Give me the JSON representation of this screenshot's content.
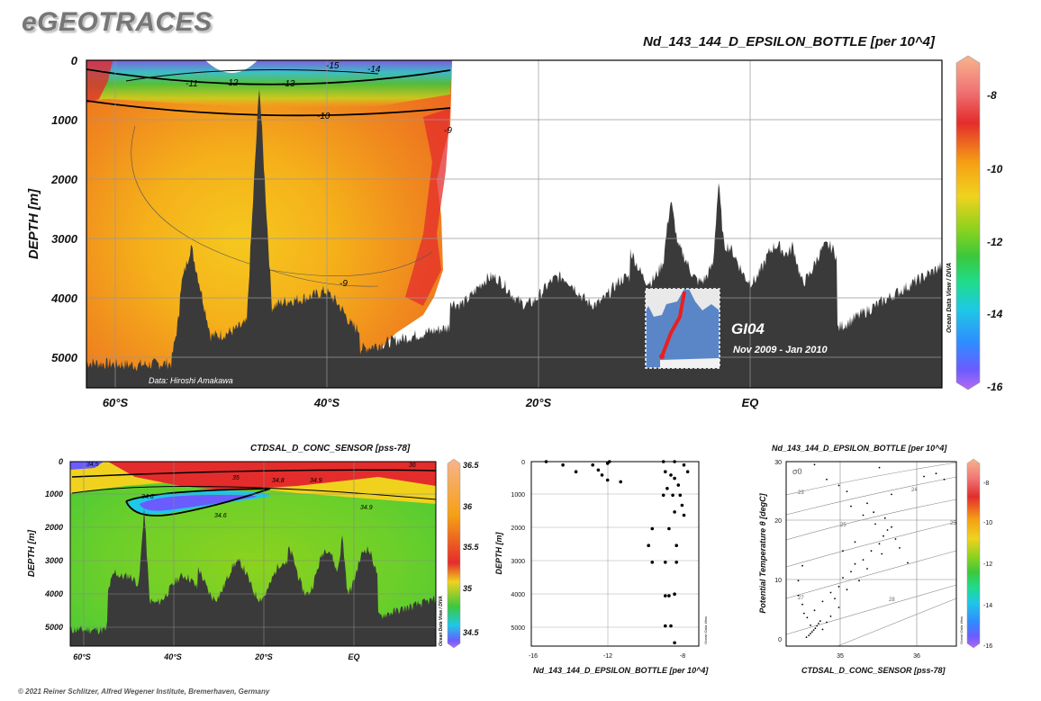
{
  "brand": "eGEOTRACES",
  "copyright": "© 2021 Reiner Schlitzer, Alfred Wegener Institute, Bremerhaven, Germany",
  "colors": {
    "bathymetry": "#3a3a3a",
    "contour": "#000000",
    "colormap": [
      "#b56cf0",
      "#6a5cff",
      "#2f8cff",
      "#1ec8e6",
      "#1edc8c",
      "#3cc83c",
      "#8cd21e",
      "#f0d21e",
      "#f5a014",
      "#ef641e",
      "#e42c2c",
      "#f07878",
      "#f7b48c"
    ]
  },
  "main_section": {
    "title": "Nd_143_144_D_EPSILON_BOTTLE [per 10^4]",
    "ylabel": "DEPTH [m]",
    "yticks": [
      "0",
      "1000",
      "2000",
      "3000",
      "4000",
      "5000"
    ],
    "xticks": [
      "60°S",
      "40°S",
      "20°S",
      "EQ"
    ],
    "credit": "Data: Hiroshi Amakawa",
    "watermark": "Ocean Data View / DIVA",
    "contour_labels": [
      "-15",
      "-14",
      "-13",
      "-12",
      "-11",
      "-10",
      "-9",
      "-9"
    ],
    "inset": {
      "cruise": "GI04",
      "dates": "Nov 2009 - Jan 2010"
    },
    "colorbar_ticks": [
      "-8",
      "-10",
      "-12",
      "-14",
      "-16"
    ]
  },
  "salinity_section": {
    "title": "CTDSAL_D_CONC_SENSOR [pss-78]",
    "ylabel": "DEPTH [m]",
    "yticks": [
      "0",
      "1000",
      "2000",
      "3000",
      "4000",
      "5000"
    ],
    "xticks": [
      "60°S",
      "40°S",
      "20°S",
      "EQ"
    ],
    "watermark": "Ocean Data View / DIVA",
    "contour_labels": [
      "34.5",
      "34.6",
      "34.8",
      "35",
      "34.9",
      "34.6",
      "34.9",
      "36"
    ],
    "colorbar_ticks": [
      "36.5",
      "36",
      "35.5",
      "35",
      "34.5"
    ]
  },
  "chart_data": [
    {
      "type": "scatter",
      "title": "",
      "xlabel": "Nd_143_144_D_EPSILON_BOTTLE [per 10^4]",
      "ylabel": "DEPTH [m]",
      "xlim": [
        -16,
        -7
      ],
      "ylim": [
        5500,
        0
      ],
      "xticks": [
        "-16",
        "-12",
        "-8"
      ],
      "yticks": [
        "0",
        "1000",
        "2000",
        "3000",
        "4000",
        "5000"
      ],
      "watermark": "Ocean Data View",
      "points": [
        [
          -15.2,
          0
        ],
        [
          -14.3,
          100
        ],
        [
          -13.6,
          300
        ],
        [
          -12.7,
          100
        ],
        [
          -12.4,
          250
        ],
        [
          -11.9,
          50
        ],
        [
          -11.8,
          0
        ],
        [
          -11.9,
          550
        ],
        [
          -11.2,
          600
        ],
        [
          -12.2,
          400
        ],
        [
          -8.9,
          0
        ],
        [
          -8.3,
          0
        ],
        [
          -7.8,
          100
        ],
        [
          -8.8,
          300
        ],
        [
          -8.5,
          400
        ],
        [
          -7.6,
          300
        ],
        [
          -8.3,
          500
        ],
        [
          -8.1,
          700
        ],
        [
          -8.7,
          800
        ],
        [
          -8.9,
          1000
        ],
        [
          -8.4,
          1000
        ],
        [
          -7.9,
          1300
        ],
        [
          -8.3,
          1500
        ],
        [
          -8.0,
          1000
        ],
        [
          -7.8,
          1600
        ],
        [
          -8.6,
          2000
        ],
        [
          -9.5,
          2000
        ],
        [
          -8.2,
          2500
        ],
        [
          -9.7,
          2500
        ],
        [
          -9.5,
          3000
        ],
        [
          -8.8,
          3000
        ],
        [
          -8.2,
          3000
        ],
        [
          -8.8,
          4000
        ],
        [
          -8.6,
          4000
        ],
        [
          -8.3,
          3950
        ],
        [
          -8.8,
          4900
        ],
        [
          -8.5,
          4900
        ],
        [
          -8.3,
          5400
        ]
      ]
    },
    {
      "type": "scatter",
      "title": "Nd_143_144_D_EPSILON_BOTTLE [per 10^4]",
      "xlabel": "CTDSAL_D_CONC_SENSOR [pss-78]",
      "ylabel": "Potential Temperature θ [degC]",
      "xlim": [
        34.4,
        36.5
      ],
      "ylim": [
        -1,
        30
      ],
      "xticks": [
        "35",
        "36"
      ],
      "yticks": [
        "0",
        "10",
        "20",
        "30"
      ],
      "sigma_label": "σ0",
      "isopycnal_labels": [
        "23",
        "24",
        "25",
        "25",
        "27",
        "28"
      ],
      "watermark": "Ocean Data View",
      "colorbar_ticks": [
        "-8",
        "-10",
        "-12",
        "-14",
        "-16"
      ],
      "points": [
        [
          34.65,
          0.5
        ],
        [
          34.68,
          0.8
        ],
        [
          34.7,
          1.1
        ],
        [
          34.72,
          1.4
        ],
        [
          34.74,
          1.7
        ],
        [
          34.76,
          2.0
        ],
        [
          34.78,
          2.4
        ],
        [
          34.8,
          2.8
        ],
        [
          34.82,
          3.2
        ],
        [
          34.7,
          2.5
        ],
        [
          34.66,
          3.8
        ],
        [
          34.62,
          4.5
        ],
        [
          34.6,
          6.0
        ],
        [
          34.55,
          7.5
        ],
        [
          34.75,
          5.0
        ],
        [
          34.85,
          6.5
        ],
        [
          34.95,
          8.0
        ],
        [
          35.05,
          9.0
        ],
        [
          35.1,
          10.5
        ],
        [
          35.2,
          11.5
        ],
        [
          35.25,
          12.8
        ],
        [
          35.35,
          13.5
        ],
        [
          35.45,
          15.0
        ],
        [
          35.55,
          16.2
        ],
        [
          35.6,
          17.5
        ],
        [
          35.65,
          18.5
        ],
        [
          35.5,
          19.5
        ],
        [
          35.35,
          21.0
        ],
        [
          35.2,
          22.5
        ],
        [
          35.15,
          25.0
        ],
        [
          35.48,
          21.5
        ],
        [
          35.7,
          19.0
        ],
        [
          35.75,
          17.0
        ],
        [
          35.58,
          14.5
        ],
        [
          35.4,
          12.0
        ],
        [
          35.3,
          10.0
        ],
        [
          35.15,
          8.5
        ],
        [
          35.0,
          7.0
        ],
        [
          35.05,
          5.5
        ],
        [
          34.95,
          4.0
        ],
        [
          34.9,
          3.0
        ],
        [
          34.85,
          1.8
        ],
        [
          35.8,
          15.5
        ],
        [
          35.9,
          13.0
        ],
        [
          35.62,
          20.5
        ],
        [
          35.4,
          23.0
        ],
        [
          35.7,
          24.5
        ],
        [
          36.1,
          27.5
        ],
        [
          36.25,
          28.0
        ],
        [
          34.9,
          27.0
        ],
        [
          35.05,
          26.0
        ],
        [
          34.75,
          29.5
        ],
        [
          35.55,
          29.0
        ],
        [
          36.35,
          27.0
        ],
        [
          34.55,
          10.0
        ],
        [
          34.6,
          12.5
        ],
        [
          35.1,
          15.0
        ],
        [
          35.25,
          16.5
        ]
      ]
    }
  ]
}
